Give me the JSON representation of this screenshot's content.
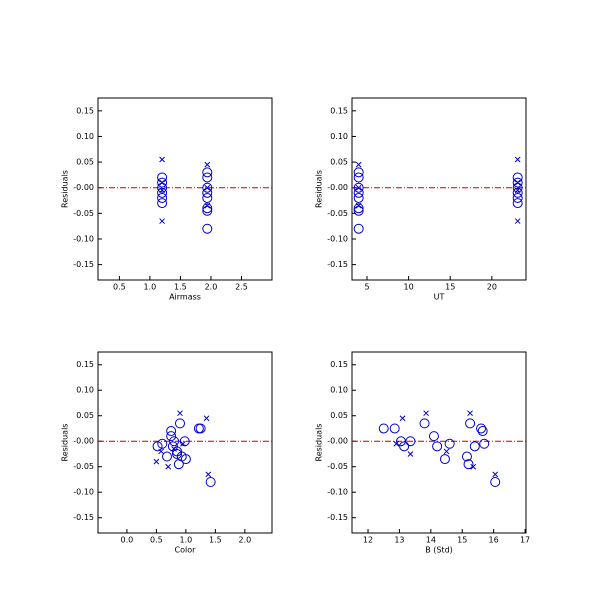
{
  "chart_data": [
    {
      "type": "scatter",
      "xlabel": "Airmass",
      "ylabel": "Residuals",
      "xlim": [
        0.15,
        3.0
      ],
      "ylim": [
        -0.18,
        0.175
      ],
      "xticks": [
        0.5,
        {
          "value": 1,
          "label": "1.0"
        },
        1.5,
        {
          "value": 2,
          "label": "2.0"
        },
        2.5
      ],
      "yticks": [
        0.15,
        {
          "value": 0.1,
          "label": "0.10"
        },
        0.05,
        {
          "value": 0,
          "label": "-0.00"
        },
        -0.05,
        {
          "value": -0.1,
          "label": "-0.10"
        },
        -0.15
      ],
      "refline": {
        "y": 0,
        "color": "#cc0000"
      },
      "series": [
        {
          "marker": "circle",
          "color": "#0000cc",
          "x": [
            1.2,
            1.2,
            1.2,
            1.2,
            1.2,
            1.2,
            1.94,
            1.94,
            1.94,
            1.94,
            1.94,
            1.94,
            1.94,
            1.94
          ],
          "values": [
            0.02,
            0.01,
            0.0,
            -0.01,
            -0.02,
            -0.03,
            0.03,
            0.02,
            0.0,
            -0.01,
            -0.02,
            -0.04,
            -0.045,
            -0.08
          ]
        },
        {
          "marker": "x",
          "color": "#0000cc",
          "x": [
            1.2,
            1.2,
            1.2,
            1.2,
            1.94,
            1.94,
            1.94
          ],
          "values": [
            0.055,
            -0.065,
            0.01,
            -0.005,
            0.045,
            -0.035,
            0.0
          ]
        }
      ]
    },
    {
      "type": "scatter",
      "xlabel": "UT",
      "ylabel": "Residuals",
      "xlim": [
        3.2,
        24.1
      ],
      "ylim": [
        -0.18,
        0.175
      ],
      "xticks": [
        5,
        10,
        15,
        20
      ],
      "yticks": [
        0.15,
        {
          "value": 0.1,
          "label": "0.10"
        },
        0.05,
        {
          "value": 0,
          "label": "-0.00"
        },
        -0.05,
        {
          "value": -0.1,
          "label": "-0.10"
        },
        -0.15
      ],
      "refline": {
        "y": 0,
        "color": "#cc0000"
      },
      "series": [
        {
          "marker": "circle",
          "color": "#0000cc",
          "x": [
            23.1,
            23.1,
            23.1,
            23.1,
            23.1,
            23.1,
            4.0,
            4.0,
            4.0,
            4.0,
            4.0,
            4.0,
            4.0,
            4.0
          ],
          "values": [
            0.02,
            0.01,
            0.0,
            -0.01,
            -0.02,
            -0.03,
            0.03,
            0.02,
            0.0,
            -0.01,
            -0.02,
            -0.04,
            -0.045,
            -0.08
          ]
        },
        {
          "marker": "x",
          "color": "#0000cc",
          "x": [
            23.1,
            23.1,
            23.1,
            23.1,
            4.0,
            4.0,
            4.0
          ],
          "values": [
            0.055,
            -0.065,
            0.01,
            -0.005,
            0.045,
            -0.035,
            0.0
          ]
        }
      ]
    },
    {
      "type": "scatter",
      "xlabel": "Color",
      "ylabel": "Residuals",
      "xlim": [
        -0.49,
        2.46
      ],
      "ylim": [
        -0.18,
        0.175
      ],
      "xticks": [
        {
          "value": 0,
          "label": "0.0"
        },
        0.5,
        {
          "value": 1,
          "label": "1.0"
        },
        1.5,
        {
          "value": 2,
          "label": "2.0"
        }
      ],
      "yticks": [
        0.15,
        {
          "value": 0.1,
          "label": "0.10"
        },
        0.05,
        {
          "value": 0,
          "label": "-0.00"
        },
        -0.05,
        {
          "value": -0.1,
          "label": "-0.10"
        },
        -0.15
      ],
      "refline": {
        "y": 0,
        "color": "#cc0000"
      },
      "series": [
        {
          "marker": "circle",
          "color": "#0000cc",
          "x": [
            0.52,
            0.6,
            0.68,
            0.75,
            0.75,
            0.78,
            0.85,
            0.88,
            0.9,
            0.93,
            0.98,
            1.0,
            1.22,
            1.25,
            1.42,
            0.8,
            0.85
          ],
          "values": [
            -0.01,
            -0.005,
            -0.03,
            0.02,
            0.01,
            -0.01,
            -0.025,
            -0.045,
            0.035,
            -0.03,
            0.0,
            -0.035,
            0.025,
            0.025,
            -0.08,
            0.0,
            -0.02
          ]
        },
        {
          "marker": "x",
          "color": "#0000cc",
          "x": [
            0.5,
            0.58,
            0.7,
            0.9,
            0.95,
            1.35,
            1.38,
            0.8
          ],
          "values": [
            -0.04,
            -0.02,
            -0.05,
            0.055,
            -0.005,
            0.045,
            -0.065,
            -0.015
          ]
        }
      ]
    },
    {
      "type": "scatter",
      "xlabel": "B (Std)",
      "ylabel": "Residuals",
      "xlim": [
        11.49,
        17.03
      ],
      "ylim": [
        -0.18,
        0.175
      ],
      "xticks": [
        12,
        13,
        14,
        15,
        16,
        17
      ],
      "yticks": [
        0.15,
        {
          "value": 0.1,
          "label": "0.10"
        },
        0.05,
        {
          "value": 0,
          "label": "-0.00"
        },
        -0.05,
        {
          "value": -0.1,
          "label": "-0.10"
        },
        -0.15
      ],
      "refline": {
        "y": 0,
        "color": "#cc0000"
      },
      "series": [
        {
          "marker": "circle",
          "color": "#0000cc",
          "x": [
            12.5,
            12.85,
            13.05,
            13.15,
            13.35,
            13.8,
            14.1,
            14.2,
            14.45,
            14.6,
            15.15,
            15.2,
            15.25,
            15.4,
            15.6,
            15.65,
            15.7,
            16.05
          ],
          "values": [
            0.025,
            0.025,
            0.0,
            -0.01,
            0.0,
            0.035,
            0.01,
            -0.01,
            -0.035,
            -0.005,
            -0.03,
            -0.045,
            0.035,
            -0.01,
            0.025,
            0.02,
            -0.005,
            -0.08
          ]
        },
        {
          "marker": "x",
          "color": "#0000cc",
          "x": [
            12.9,
            13.1,
            13.35,
            13.85,
            14.5,
            15.25,
            15.35,
            16.05
          ],
          "values": [
            -0.005,
            0.045,
            -0.025,
            0.055,
            -0.02,
            0.055,
            -0.05,
            -0.065
          ]
        }
      ]
    }
  ]
}
